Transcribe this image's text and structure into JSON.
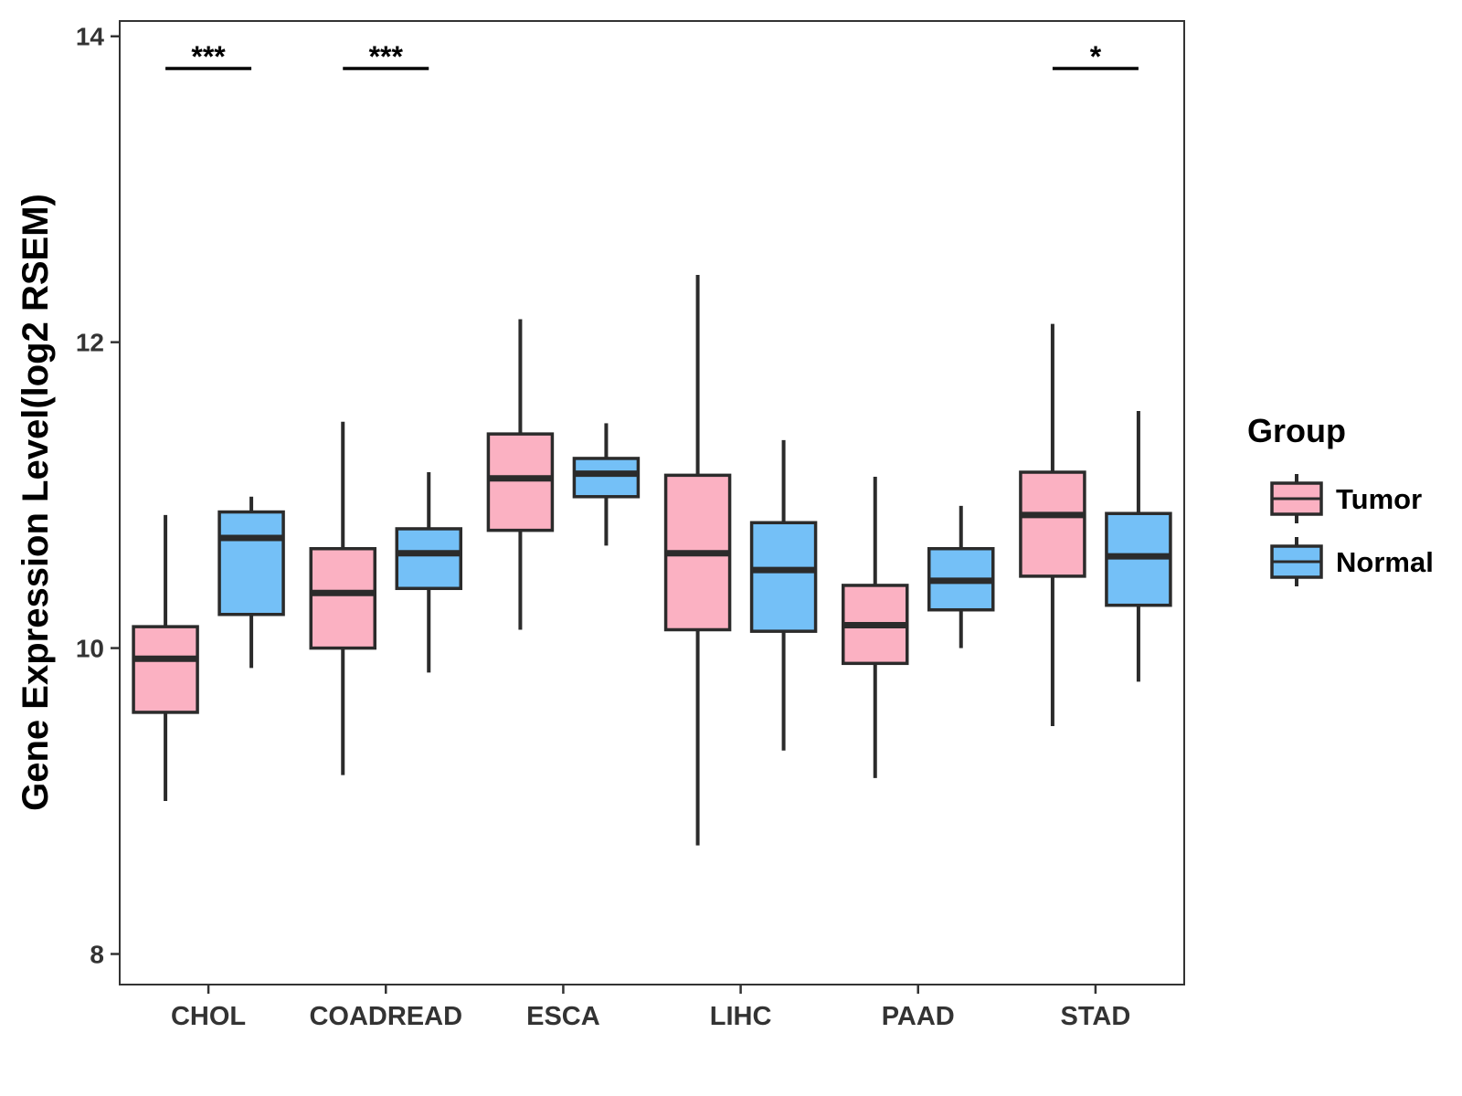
{
  "chart_data": {
    "type": "boxplot",
    "title": "",
    "xlabel": "",
    "ylabel": "Gene Expression Level(log2 RSEM)",
    "ylim": [
      7.8,
      14.1
    ],
    "yticks": [
      8,
      10,
      12,
      14
    ],
    "ytick_labels": [
      "8",
      "10",
      "12",
      "14"
    ],
    "categories": [
      "CHOL",
      "COADREAD",
      "ESCA",
      "LIHC",
      "PAAD",
      "STAD"
    ],
    "legend": {
      "title": "Group",
      "position": "right",
      "entries": [
        "Tumor",
        "Normal"
      ]
    },
    "series": [
      {
        "name": "Tumor",
        "color": "#FBB1C2",
        "stats": [
          {
            "whisker_low": 9.0,
            "q1": 9.58,
            "median": 9.93,
            "q3": 10.14,
            "whisker_high": 10.87
          },
          {
            "whisker_low": 9.17,
            "q1": 10.0,
            "median": 10.36,
            "q3": 10.65,
            "whisker_high": 11.48
          },
          {
            "whisker_low": 10.12,
            "q1": 10.77,
            "median": 11.11,
            "q3": 11.4,
            "whisker_high": 12.15
          },
          {
            "whisker_low": 8.71,
            "q1": 10.12,
            "median": 10.62,
            "q3": 11.13,
            "whisker_high": 12.44
          },
          {
            "whisker_low": 9.15,
            "q1": 9.9,
            "median": 10.15,
            "q3": 10.41,
            "whisker_high": 11.12
          },
          {
            "whisker_low": 9.49,
            "q1": 10.47,
            "median": 10.87,
            "q3": 11.15,
            "whisker_high": 12.12
          }
        ]
      },
      {
        "name": "Normal",
        "color": "#74C0F7",
        "stats": [
          {
            "whisker_low": 9.87,
            "q1": 10.22,
            "median": 10.72,
            "q3": 10.89,
            "whisker_high": 10.99
          },
          {
            "whisker_low": 9.84,
            "q1": 10.39,
            "median": 10.62,
            "q3": 10.78,
            "whisker_high": 11.15
          },
          {
            "whisker_low": 10.67,
            "q1": 10.99,
            "median": 11.14,
            "q3": 11.24,
            "whisker_high": 11.47
          },
          {
            "whisker_low": 9.33,
            "q1": 10.11,
            "median": 10.51,
            "q3": 10.82,
            "whisker_high": 11.36
          },
          {
            "whisker_low": 10.0,
            "q1": 10.25,
            "median": 10.44,
            "q3": 10.65,
            "whisker_high": 10.93
          },
          {
            "whisker_low": 9.78,
            "q1": 10.28,
            "median": 10.6,
            "q3": 10.88,
            "whisker_high": 11.55
          }
        ]
      }
    ],
    "annotations": [
      {
        "category": "CHOL",
        "label": "***"
      },
      {
        "category": "COADREAD",
        "label": "***"
      },
      {
        "category": "STAD",
        "label": "*"
      }
    ]
  }
}
